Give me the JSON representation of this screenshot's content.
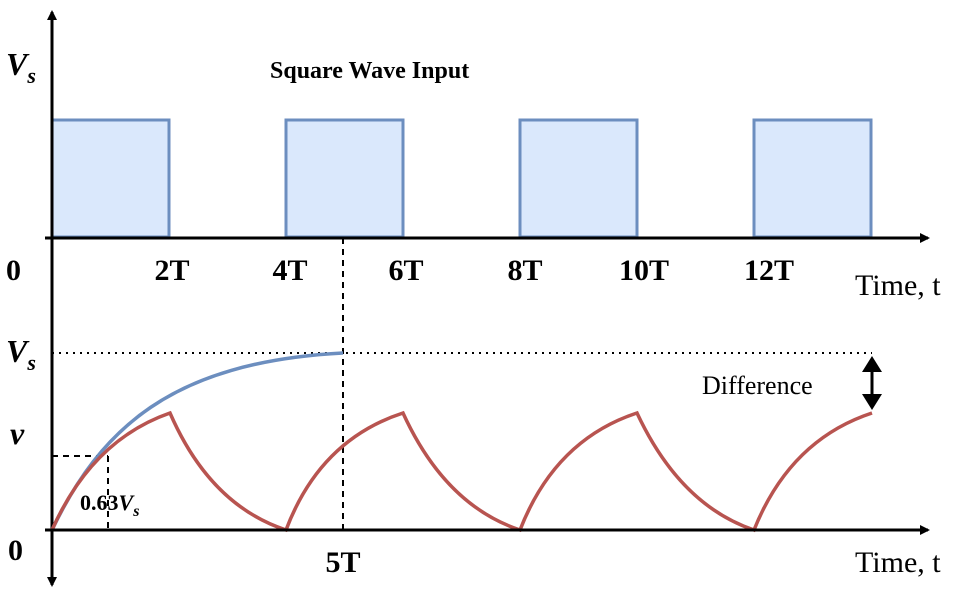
{
  "top_panel": {
    "title": "Square Wave Input",
    "y_label": {
      "main": "V",
      "sub": "s"
    },
    "origin_label": "0",
    "x_ticks": [
      "2T",
      "4T",
      "6T",
      "8T",
      "10T",
      "12T"
    ],
    "x_axis_title": "Time, t",
    "fill_color": "#dae8fc",
    "stroke_color": "#6c8ebf"
  },
  "bottom_panel": {
    "y_labels": {
      "vs": {
        "main": "V",
        "sub": "s"
      },
      "v": "v"
    },
    "origin_label": "0",
    "x_tick": "5T",
    "x_axis_title": "Time, t",
    "annotation_063": {
      "prefix": "0.63",
      "main": "V",
      "sub": "s"
    },
    "difference_label": "Difference",
    "charging_color": "#6c8ebf",
    "response_color": "#b85450"
  }
}
